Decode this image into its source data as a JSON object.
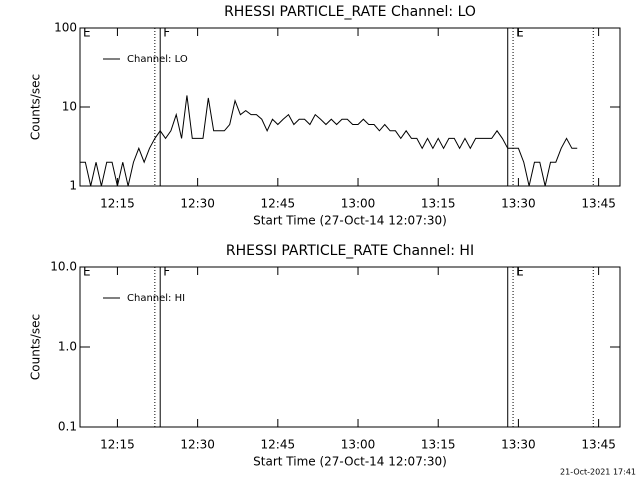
{
  "chart_data": [
    {
      "type": "line",
      "title": "RHESSI PARTICLE_RATE Channel: LO",
      "xlabel": "Start Time (27-Oct-14 12:07:30)",
      "ylabel": "Counts/sec",
      "log_y": true,
      "ylim": [
        1,
        100
      ],
      "yticks": [
        1,
        10,
        100
      ],
      "xlim": [
        "12:08",
        "13:49"
      ],
      "xticks": [
        "12:15",
        "12:30",
        "12:45",
        "13:00",
        "13:15",
        "13:30",
        "13:45"
      ],
      "legend": "upper left",
      "events": [
        {
          "x": "12:08",
          "label": "E"
        },
        {
          "x": "12:22",
          "style": "dotted"
        },
        {
          "x": "12:23",
          "style": "solid",
          "label": "F"
        },
        {
          "x": "13:28",
          "style": "solid"
        },
        {
          "x": "13:29",
          "style": "dotted",
          "label": "E"
        },
        {
          "x": "13:44",
          "style": "dotted"
        }
      ],
      "x": [
        "12:08",
        "12:09",
        "12:10",
        "12:11",
        "12:12",
        "12:13",
        "12:14",
        "12:15",
        "12:16",
        "12:17",
        "12:18",
        "12:19",
        "12:20",
        "12:21",
        "12:22",
        "12:23",
        "12:24",
        "12:25",
        "12:26",
        "12:27",
        "12:28",
        "12:29",
        "12:30",
        "12:31",
        "12:32",
        "12:33",
        "12:34",
        "12:35",
        "12:36",
        "12:37",
        "12:38",
        "12:39",
        "12:40",
        "12:41",
        "12:42",
        "12:43",
        "12:44",
        "12:45",
        "12:46",
        "12:47",
        "12:48",
        "12:49",
        "12:50",
        "12:51",
        "12:52",
        "12:53",
        "12:54",
        "12:55",
        "12:56",
        "12:57",
        "12:58",
        "12:59",
        "13:00",
        "13:01",
        "13:02",
        "13:03",
        "13:04",
        "13:05",
        "13:06",
        "13:07",
        "13:08",
        "13:09",
        "13:10",
        "13:11",
        "13:12",
        "13:13",
        "13:14",
        "13:15",
        "13:16",
        "13:17",
        "13:18",
        "13:19",
        "13:20",
        "13:21",
        "13:22",
        "13:23",
        "13:24",
        "13:25",
        "13:26",
        "13:27",
        "13:28",
        "13:29",
        "13:30",
        "13:31",
        "13:32",
        "13:33",
        "13:34",
        "13:35",
        "13:36",
        "13:37",
        "13:38",
        "13:39",
        "13:40",
        "13:41"
      ],
      "series": [
        {
          "name": "Channel: LO",
          "color": "#000000",
          "values": [
            2,
            2,
            1,
            2,
            1,
            2,
            2,
            1,
            2,
            1,
            2,
            3,
            2,
            3,
            4,
            5,
            4,
            5,
            8,
            4,
            14,
            4,
            4,
            4,
            13,
            5,
            5,
            5,
            6,
            12,
            8,
            9,
            8,
            8,
            7,
            5,
            7,
            6,
            7,
            8,
            6,
            7,
            7,
            6,
            8,
            7,
            6,
            7,
            6,
            7,
            7,
            6,
            6,
            7,
            6,
            6,
            5,
            6,
            5,
            5,
            4,
            5,
            4,
            4,
            3,
            4,
            3,
            4,
            3,
            4,
            4,
            3,
            4,
            3,
            4,
            4,
            4,
            4,
            5,
            4,
            3,
            3,
            3,
            2,
            1,
            2,
            2,
            1,
            2,
            2,
            3,
            4,
            3,
            3
          ]
        }
      ]
    },
    {
      "type": "line",
      "title": "RHESSI PARTICLE_RATE Channel: HI",
      "xlabel": "Start Time (27-Oct-14 12:07:30)",
      "ylabel": "Counts/sec",
      "log_y": true,
      "ylim": [
        0.1,
        10
      ],
      "yticks": [
        0.1,
        {
          "value": 1,
          "label": "1.0"
        },
        {
          "value": 10,
          "label": "10.0"
        }
      ],
      "xlim": [
        "12:08",
        "13:49"
      ],
      "xticks": [
        "12:15",
        "12:30",
        "12:45",
        "13:00",
        "13:15",
        "13:30",
        "13:45"
      ],
      "legend": "upper left",
      "events": [
        {
          "x": "12:08",
          "label": "E"
        },
        {
          "x": "12:22",
          "style": "dotted"
        },
        {
          "x": "12:23",
          "style": "solid",
          "label": "F"
        },
        {
          "x": "13:28",
          "style": "solid"
        },
        {
          "x": "13:29",
          "style": "dotted",
          "label": "E"
        },
        {
          "x": "13:44",
          "style": "dotted"
        }
      ],
      "x": [],
      "series": [
        {
          "name": "Channel: HI",
          "color": "#000000",
          "values": []
        }
      ]
    }
  ],
  "footer": "21-Oct-2021 17:41"
}
